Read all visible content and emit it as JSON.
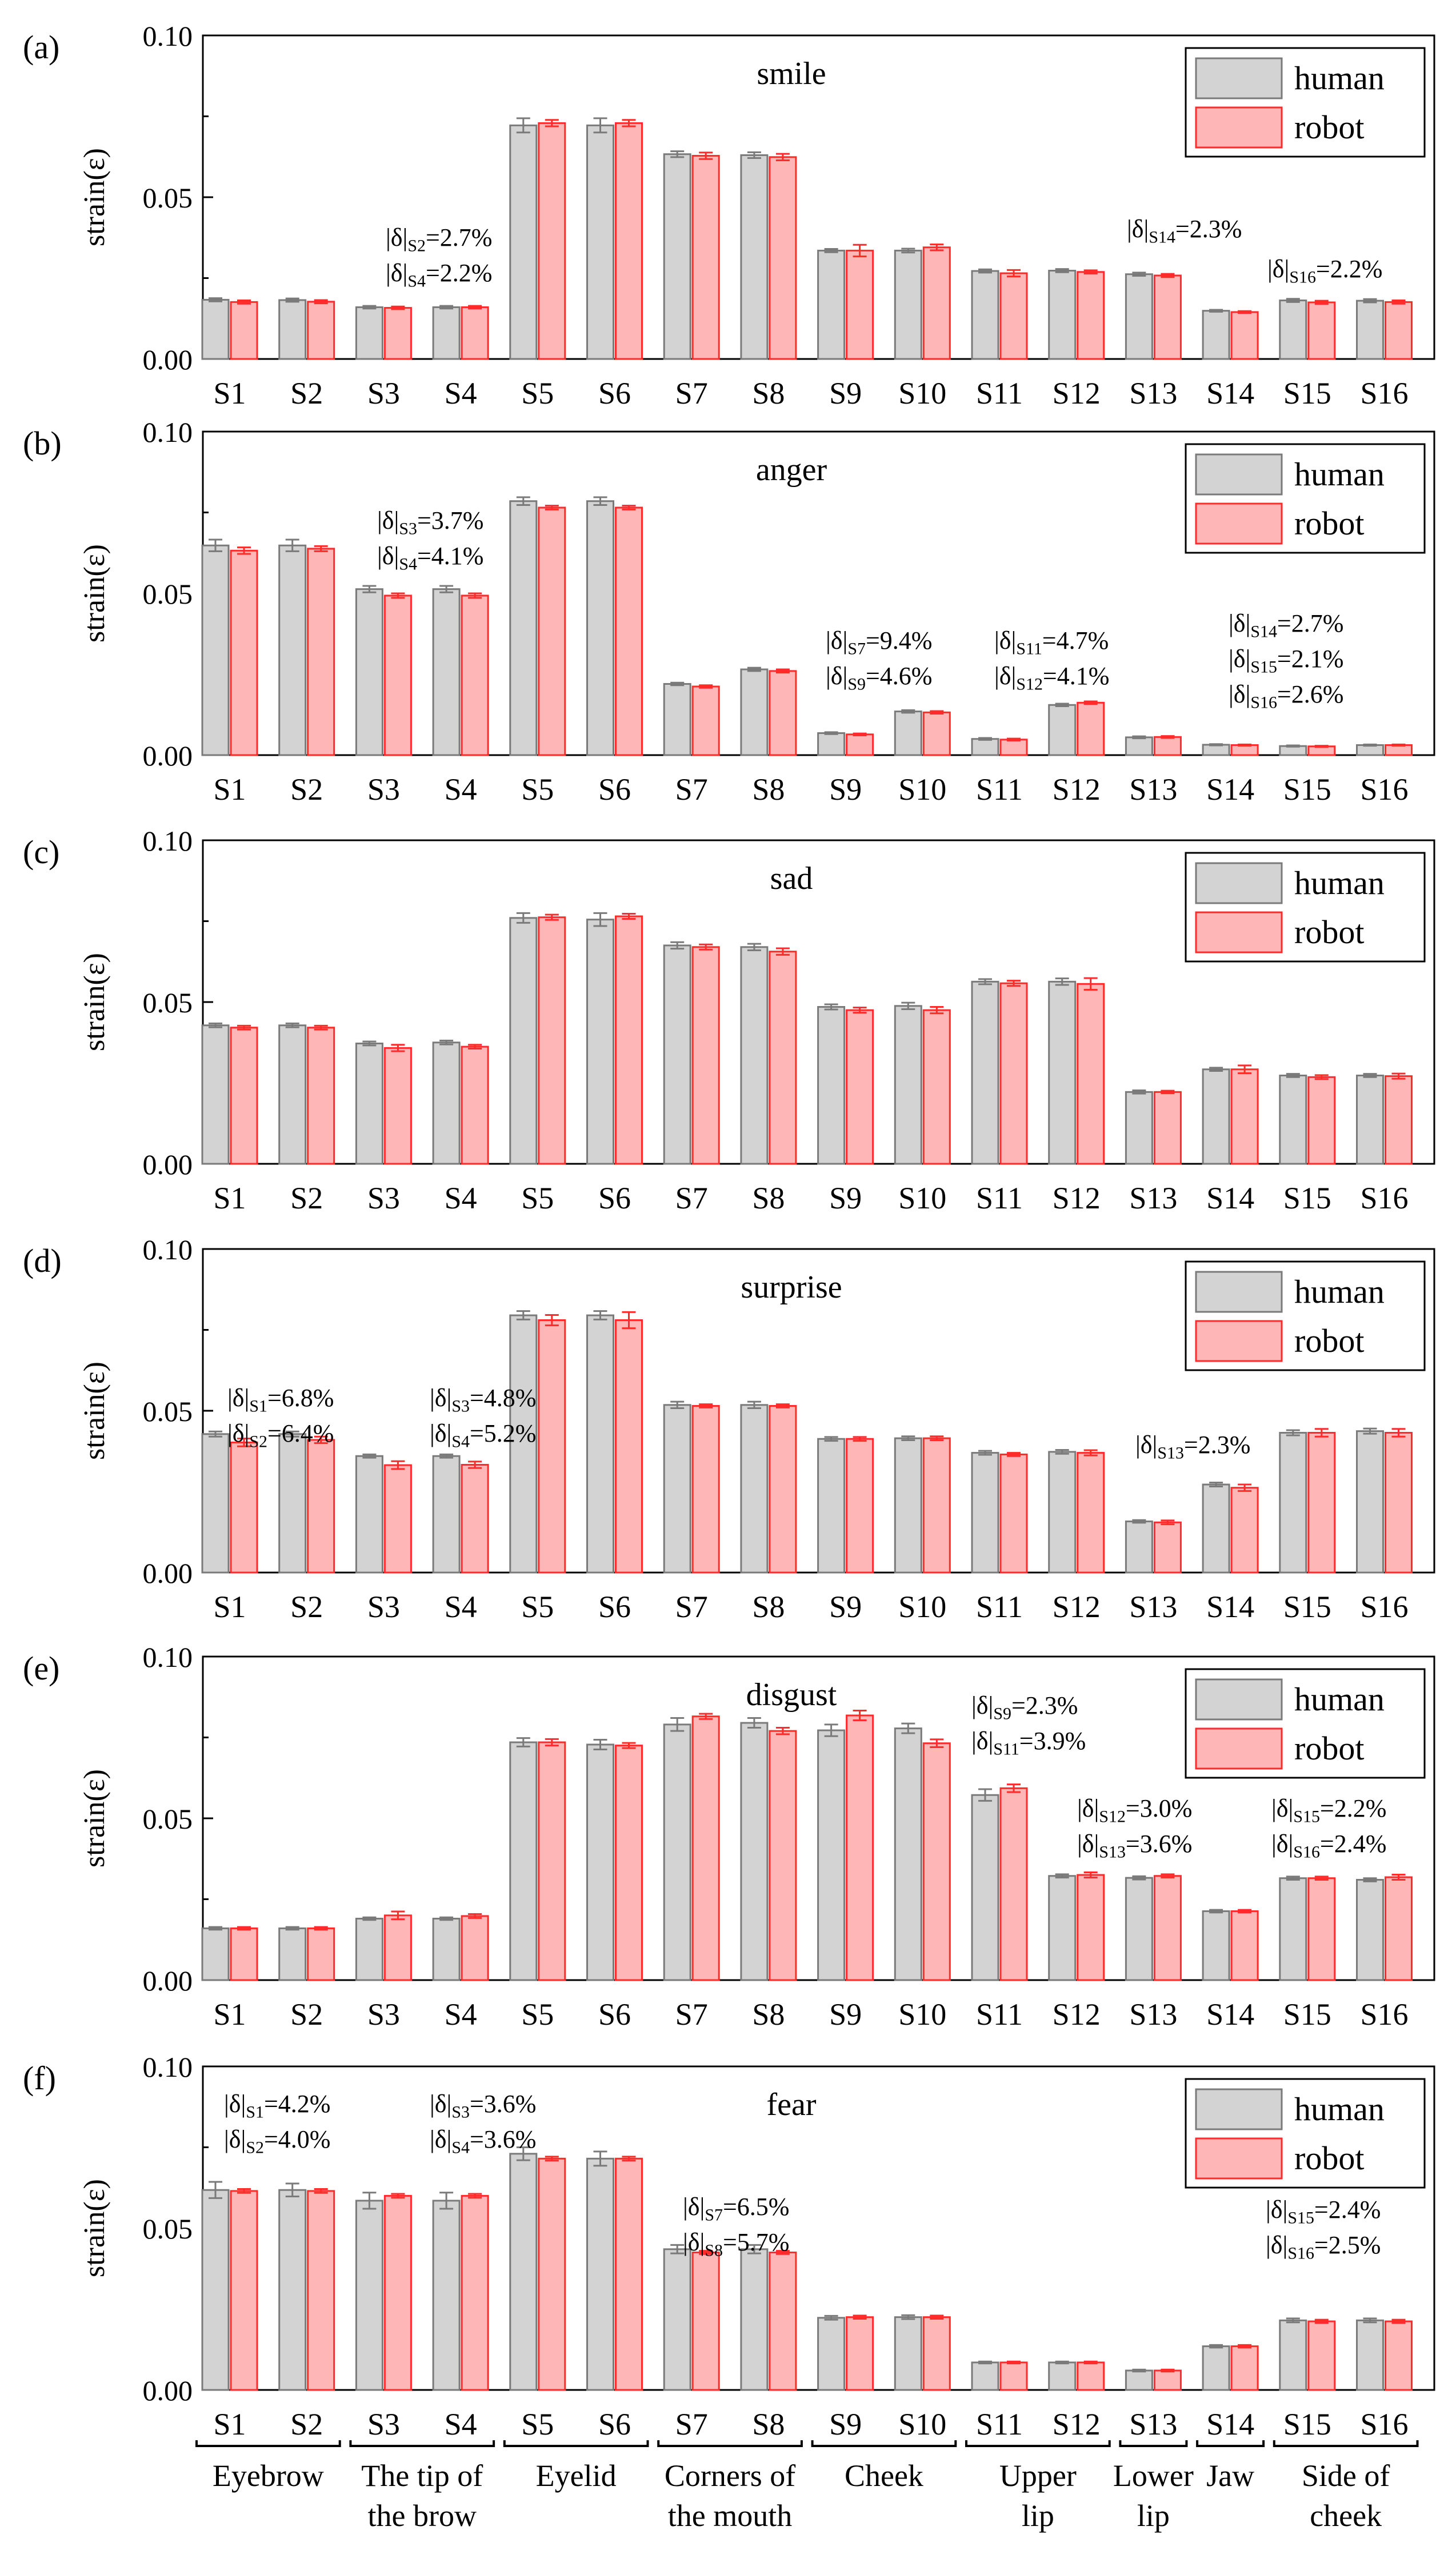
{
  "legend": {
    "human": "human",
    "robot": "robot"
  },
  "colors": {
    "human_fill": "#d3d3d3",
    "human_edge": "#7a7a7a",
    "robot_fill": "#ffb6b6",
    "robot_edge": "#ff2a2a",
    "axis": "#000000"
  },
  "y_axis": {
    "label": "strain(ε)",
    "ticks": [
      "0.00",
      "0.05",
      "0.10"
    ],
    "ylim": [
      0,
      0.1
    ]
  },
  "categories": [
    "S1",
    "S2",
    "S3",
    "S4",
    "S5",
    "S6",
    "S7",
    "S8",
    "S9",
    "S10",
    "S11",
    "S12",
    "S13",
    "S14",
    "S15",
    "S16"
  ],
  "region_labels": [
    {
      "lines": [
        "Eyebrow"
      ]
    },
    {
      "lines": [
        "The tip of",
        "the brow"
      ]
    },
    {
      "lines": [
        "Eyelid"
      ]
    },
    {
      "lines": [
        "Corners of",
        "the mouth"
      ]
    },
    {
      "lines": [
        "Cheek"
      ]
    },
    {
      "lines": [
        "Upper",
        "lip"
      ]
    },
    {
      "lines": [
        "Lower",
        "lip"
      ]
    },
    {
      "lines": [
        "Jaw"
      ]
    },
    {
      "lines": [
        "Side of",
        "cheek"
      ]
    }
  ],
  "chart_data": [
    {
      "type": "bar",
      "panel": "(a)",
      "title": "smile",
      "ylabel": "strain(ε)",
      "ylim": [
        0,
        0.1
      ],
      "categories": [
        "S1",
        "S2",
        "S3",
        "S4",
        "S5",
        "S6",
        "S7",
        "S8",
        "S9",
        "S10",
        "S11",
        "S12",
        "S13",
        "S14",
        "S15",
        "S16"
      ],
      "series": [
        {
          "name": "human",
          "values": [
            0.0183,
            0.0182,
            0.016,
            0.016,
            0.0722,
            0.0722,
            0.0633,
            0.063,
            0.0335,
            0.0335,
            0.0272,
            0.0273,
            0.0262,
            0.0149,
            0.0181,
            0.018
          ],
          "errors": [
            0.0005,
            0.0005,
            0.0004,
            0.0004,
            0.0022,
            0.0022,
            0.0009,
            0.0009,
            0.0005,
            0.0006,
            0.0005,
            0.0005,
            0.0005,
            0.0003,
            0.0005,
            0.0005
          ]
        },
        {
          "name": "robot",
          "values": [
            0.0176,
            0.0177,
            0.0158,
            0.016,
            0.0729,
            0.0729,
            0.0628,
            0.0624,
            0.0335,
            0.0345,
            0.0265,
            0.0269,
            0.0258,
            0.0145,
            0.0175,
            0.0176
          ],
          "errors": [
            0.0005,
            0.0005,
            0.0004,
            0.0004,
            0.001,
            0.001,
            0.001,
            0.001,
            0.0018,
            0.0009,
            0.001,
            0.0005,
            0.0005,
            0.0003,
            0.0005,
            0.0005
          ]
        }
      ],
      "annotations": [
        {
          "lines": [
            "|δ|S2=2.7%",
            "|δ|S4=2.2%"
          ]
        },
        {
          "lines": [
            "|δ|S14=2.3%"
          ]
        },
        {
          "lines": [
            "|δ|S16=2.2%"
          ]
        }
      ]
    },
    {
      "type": "bar",
      "panel": "(b)",
      "title": "anger",
      "ylabel": "strain(ε)",
      "ylim": [
        0,
        0.1
      ],
      "categories": [
        "S1",
        "S2",
        "S3",
        "S4",
        "S5",
        "S6",
        "S7",
        "S8",
        "S9",
        "S10",
        "S11",
        "S12",
        "S13",
        "S14",
        "S15",
        "S16"
      ],
      "series": [
        {
          "name": "human",
          "values": [
            0.0648,
            0.0648,
            0.0513,
            0.0513,
            0.0785,
            0.0785,
            0.022,
            0.0265,
            0.0068,
            0.0135,
            0.005,
            0.0155,
            0.0055,
            0.0032,
            0.0028,
            0.0031
          ],
          "errors": [
            0.0018,
            0.0018,
            0.001,
            0.001,
            0.0012,
            0.0012,
            0.0004,
            0.0005,
            0.0003,
            0.0004,
            0.0003,
            0.0004,
            0.0003,
            0.0002,
            0.0002,
            0.0002
          ]
        },
        {
          "name": "robot",
          "values": [
            0.0632,
            0.0638,
            0.0493,
            0.0493,
            0.0765,
            0.0765,
            0.0212,
            0.026,
            0.0064,
            0.0132,
            0.0048,
            0.0162,
            0.0056,
            0.0031,
            0.0027,
            0.0031
          ],
          "errors": [
            0.001,
            0.0008,
            0.0007,
            0.0007,
            0.0006,
            0.0006,
            0.0004,
            0.0005,
            0.0003,
            0.0004,
            0.0003,
            0.0004,
            0.0003,
            0.0002,
            0.0002,
            0.0002
          ]
        }
      ],
      "annotations": [
        {
          "lines": [
            "|δ|S3=3.7%",
            "|δ|S4=4.1%"
          ]
        },
        {
          "lines": [
            "|δ|S7=9.4%",
            "|δ|S9=4.6%"
          ]
        },
        {
          "lines": [
            "|δ|S11=4.7%",
            "|δ|S12=4.1%"
          ]
        },
        {
          "lines": [
            "|δ|S14=2.7%",
            "|δ|S15=2.1%",
            "|δ|S16=2.6%"
          ]
        }
      ]
    },
    {
      "type": "bar",
      "panel": "(c)",
      "title": "sad",
      "ylabel": "strain(ε)",
      "ylim": [
        0,
        0.1
      ],
      "categories": [
        "S1",
        "S2",
        "S3",
        "S4",
        "S5",
        "S6",
        "S7",
        "S8",
        "S9",
        "S10",
        "S11",
        "S12",
        "S13",
        "S14",
        "S15",
        "S16"
      ],
      "series": [
        {
          "name": "human",
          "values": [
            0.0428,
            0.0428,
            0.0372,
            0.0375,
            0.076,
            0.0755,
            0.0675,
            0.067,
            0.0485,
            0.0488,
            0.0563,
            0.0563,
            0.0222,
            0.0292,
            0.0273,
            0.0273
          ],
          "errors": [
            0.0006,
            0.0006,
            0.0006,
            0.0006,
            0.0015,
            0.002,
            0.001,
            0.001,
            0.0008,
            0.001,
            0.0008,
            0.001,
            0.0005,
            0.0005,
            0.0005,
            0.0005
          ]
        },
        {
          "name": "robot",
          "values": [
            0.0421,
            0.0421,
            0.0358,
            0.0362,
            0.0762,
            0.0765,
            0.067,
            0.0656,
            0.0475,
            0.0475,
            0.0558,
            0.0556,
            0.0222,
            0.0292,
            0.0268,
            0.0271
          ],
          "errors": [
            0.0006,
            0.0006,
            0.001,
            0.0006,
            0.0008,
            0.0008,
            0.0008,
            0.001,
            0.0008,
            0.001,
            0.0008,
            0.0018,
            0.0004,
            0.0012,
            0.0006,
            0.0008
          ]
        }
      ],
      "annotations": []
    },
    {
      "type": "bar",
      "panel": "(d)",
      "title": "surprise",
      "ylabel": "strain(ε)",
      "ylim": [
        0,
        0.1
      ],
      "categories": [
        "S1",
        "S2",
        "S3",
        "S4",
        "S5",
        "S6",
        "S7",
        "S8",
        "S9",
        "S10",
        "S11",
        "S12",
        "S13",
        "S14",
        "S15",
        "S16"
      ],
      "series": [
        {
          "name": "human",
          "values": [
            0.0428,
            0.0428,
            0.036,
            0.036,
            0.0795,
            0.0795,
            0.0518,
            0.0518,
            0.0413,
            0.0415,
            0.037,
            0.0373,
            0.0158,
            0.0272,
            0.0432,
            0.0437
          ],
          "errors": [
            0.0008,
            0.0008,
            0.0005,
            0.0005,
            0.0013,
            0.0013,
            0.001,
            0.001,
            0.0006,
            0.0006,
            0.0006,
            0.0006,
            0.0004,
            0.0006,
            0.0008,
            0.0008
          ]
        },
        {
          "name": "robot",
          "values": [
            0.0402,
            0.041,
            0.0332,
            0.0333,
            0.078,
            0.078,
            0.0515,
            0.0515,
            0.0413,
            0.0415,
            0.0365,
            0.037,
            0.0155,
            0.0262,
            0.0432,
            0.0432
          ],
          "errors": [
            0.0012,
            0.001,
            0.0012,
            0.001,
            0.0016,
            0.0025,
            0.0005,
            0.0005,
            0.0006,
            0.0006,
            0.0005,
            0.0008,
            0.0006,
            0.001,
            0.0012,
            0.0012
          ]
        }
      ],
      "annotations": [
        {
          "lines": [
            "|δ|S1=6.8%",
            "|δ|S2=6.4%"
          ]
        },
        {
          "lines": [
            "|δ|S3=4.8%",
            "|δ|S4=5.2%"
          ]
        },
        {
          "lines": [
            "|δ|S13=2.3%"
          ]
        }
      ]
    },
    {
      "type": "bar",
      "panel": "(e)",
      "title": "disgust",
      "ylabel": "strain(ε)",
      "ylim": [
        0,
        0.1
      ],
      "categories": [
        "S1",
        "S2",
        "S3",
        "S4",
        "S5",
        "S6",
        "S7",
        "S8",
        "S9",
        "S10",
        "S11",
        "S12",
        "S13",
        "S14",
        "S15",
        "S16"
      ],
      "series": [
        {
          "name": "human",
          "values": [
            0.016,
            0.016,
            0.019,
            0.019,
            0.0735,
            0.0728,
            0.079,
            0.0795,
            0.0772,
            0.0778,
            0.0572,
            0.0322,
            0.0316,
            0.0213,
            0.0315,
            0.031
          ],
          "errors": [
            0.0004,
            0.0004,
            0.0004,
            0.0004,
            0.0013,
            0.0015,
            0.002,
            0.0015,
            0.0018,
            0.0015,
            0.0018,
            0.0005,
            0.0005,
            0.0004,
            0.0005,
            0.0005
          ]
        },
        {
          "name": "robot",
          "values": [
            0.016,
            0.016,
            0.02,
            0.0198,
            0.0735,
            0.0725,
            0.0815,
            0.077,
            0.0818,
            0.0732,
            0.0593,
            0.0325,
            0.0322,
            0.0213,
            0.0315,
            0.0318
          ],
          "errors": [
            0.0004,
            0.0004,
            0.0012,
            0.0006,
            0.001,
            0.0008,
            0.0008,
            0.001,
            0.0015,
            0.0012,
            0.0012,
            0.0008,
            0.0005,
            0.0004,
            0.0005,
            0.0008
          ]
        }
      ],
      "annotations": [
        {
          "lines": [
            "|δ|S9=2.3%",
            "|δ|S11=3.9%"
          ]
        },
        {
          "lines": [
            "|δ|S12=3.0%",
            "|δ|S13=3.6%"
          ]
        },
        {
          "lines": [
            "|δ|S15=2.2%",
            "|δ|S16=2.4%"
          ]
        }
      ]
    },
    {
      "type": "bar",
      "panel": "(f)",
      "title": "fear",
      "ylabel": "strain(ε)",
      "ylim": [
        0,
        0.1
      ],
      "categories": [
        "S1",
        "S2",
        "S3",
        "S4",
        "S5",
        "S6",
        "S7",
        "S8",
        "S9",
        "S10",
        "S11",
        "S12",
        "S13",
        "S14",
        "S15",
        "S16"
      ],
      "series": [
        {
          "name": "human",
          "values": [
            0.0618,
            0.0618,
            0.0585,
            0.0585,
            0.073,
            0.0715,
            0.0435,
            0.0435,
            0.0223,
            0.0225,
            0.0085,
            0.0085,
            0.006,
            0.0135,
            0.0215,
            0.0215
          ],
          "errors": [
            0.0025,
            0.002,
            0.0025,
            0.0025,
            0.002,
            0.0022,
            0.0013,
            0.0013,
            0.0006,
            0.0006,
            0.0003,
            0.0003,
            0.0003,
            0.0004,
            0.0006,
            0.0006
          ]
        },
        {
          "name": "robot",
          "values": [
            0.0615,
            0.0615,
            0.06,
            0.06,
            0.0715,
            0.0715,
            0.0425,
            0.0425,
            0.0225,
            0.0225,
            0.0085,
            0.0085,
            0.006,
            0.0135,
            0.0212,
            0.0212
          ],
          "errors": [
            0.0006,
            0.0006,
            0.0006,
            0.0006,
            0.0006,
            0.0006,
            0.0005,
            0.0005,
            0.0005,
            0.0005,
            0.0003,
            0.0003,
            0.0003,
            0.0004,
            0.0005,
            0.0005
          ]
        }
      ],
      "annotations": [
        {
          "lines": [
            "|δ|S1=4.2%",
            "|δ|S2=4.0%"
          ]
        },
        {
          "lines": [
            "|δ|S3=3.6%",
            "|δ|S4=3.6%"
          ]
        },
        {
          "lines": [
            "|δ|S7=6.5%",
            "|δ|S8=5.7%"
          ]
        },
        {
          "lines": [
            "|δ|S15=2.4%",
            "|δ|S16=2.5%"
          ]
        }
      ]
    }
  ]
}
